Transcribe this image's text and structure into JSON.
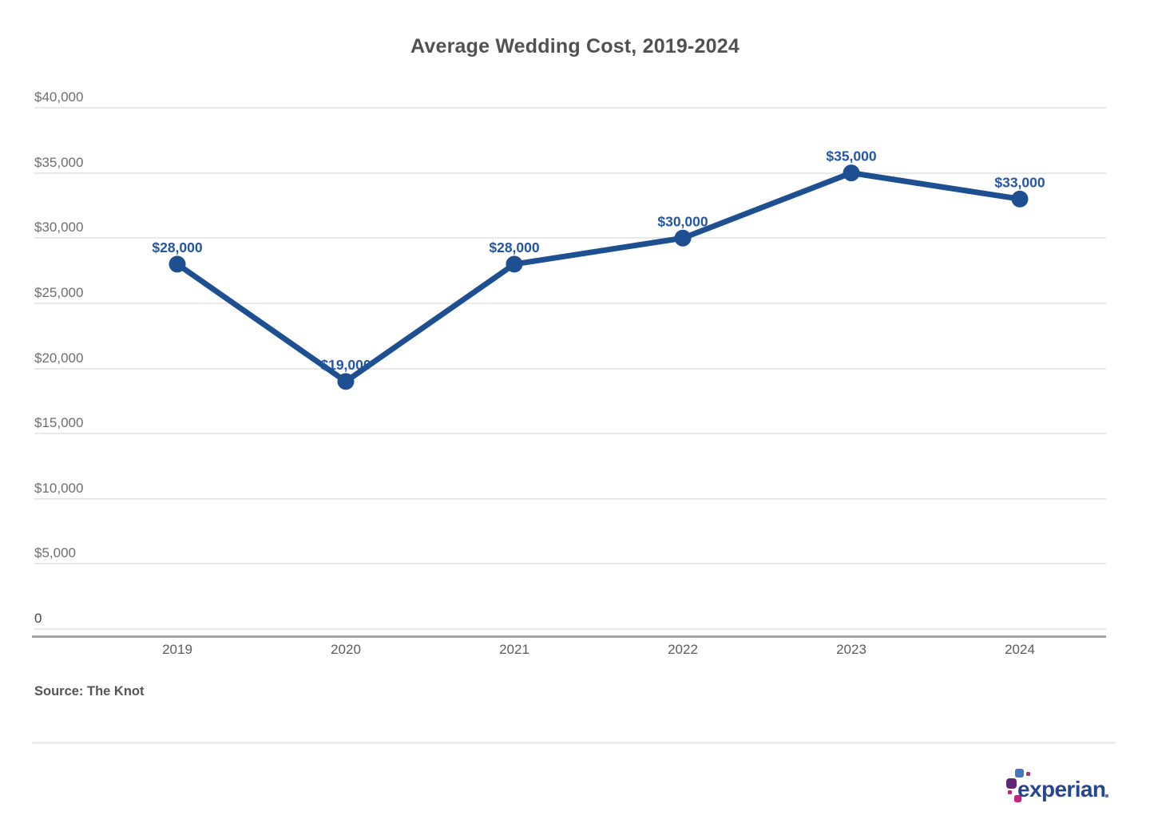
{
  "page": {
    "title": "Average Wedding Cost, 2019-2024",
    "source": "Source: The Knot"
  },
  "branding": {
    "name": "experian",
    "wordmark_color": "#26478d",
    "square_colors": {
      "blue": "#4577bd",
      "purple": "#5f2877",
      "magenta": "#c0267f"
    }
  },
  "colors": {
    "line": "#1d4f91",
    "marker": "#1d4f91",
    "point_labels": "#2456a4",
    "title": "#515151",
    "y_axis_labels": "#6e6e6e",
    "zero_label": "#474747",
    "x_axis_labels": "#5c5c5c",
    "gridline": "#e9e9e9",
    "axis_line": "#a3a3a3",
    "source": "#555555",
    "divider": "#ececec"
  },
  "chart_data": {
    "type": "line",
    "title": "Average Wedding Cost, 2019-2024",
    "categories": [
      "2019",
      "2020",
      "2021",
      "2022",
      "2023",
      "2024"
    ],
    "values": [
      28000,
      19000,
      28000,
      30000,
      35000,
      33000
    ],
    "point_labels": [
      "$28,000",
      "$19,000",
      "$28,000",
      "$30,000",
      "$35,000",
      "$33,000"
    ],
    "xlabel": "",
    "ylabel": "",
    "ylim": [
      0,
      40000
    ],
    "yticks": [
      {
        "value": 40000,
        "label": "$40,000"
      },
      {
        "value": 35000,
        "label": "$35,000"
      },
      {
        "value": 30000,
        "label": "$30,000"
      },
      {
        "value": 25000,
        "label": "$25,000"
      },
      {
        "value": 20000,
        "label": "$20,000"
      },
      {
        "value": 15000,
        "label": "$15,000"
      },
      {
        "value": 10000,
        "label": "$10,000"
      },
      {
        "value": 5000,
        "label": "$5,000"
      },
      {
        "value": 0,
        "label": "0"
      }
    ],
    "grid": true,
    "legend": "none",
    "source": "Source: The Knot"
  }
}
